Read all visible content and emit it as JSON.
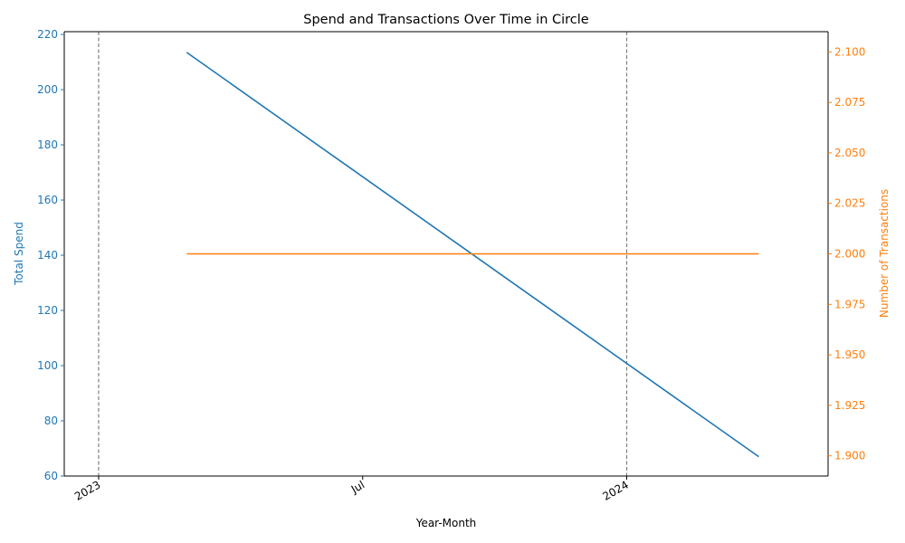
{
  "chart_data": {
    "type": "line",
    "title": "Spend and Transactions Over Time in Circle",
    "xlabel": "Year-Month",
    "x": [
      "2023-03",
      "2024-04"
    ],
    "x_range": [
      "2023-01",
      "2024-05"
    ],
    "x_ticks": [
      {
        "value": "2023-01",
        "label": "2023"
      },
      {
        "value": "2023-07",
        "label": "Jul"
      },
      {
        "value": "2024-01",
        "label": "2024"
      }
    ],
    "vlines": [
      "2023-01",
      "2024-01"
    ],
    "left_axis": {
      "label": "Total Spend",
      "color": "#1f77b4",
      "range": [
        60,
        221
      ],
      "ticks": [
        60,
        80,
        100,
        120,
        140,
        160,
        180,
        200,
        220
      ],
      "tick_labels": [
        "60",
        "80",
        "100",
        "120",
        "140",
        "160",
        "180",
        "200",
        "220"
      ]
    },
    "right_axis": {
      "label": "Number of Transactions",
      "color": "#ff7f0e",
      "range": [
        1.89,
        2.11
      ],
      "ticks": [
        1.9,
        1.925,
        1.95,
        1.975,
        2.0,
        2.025,
        2.05,
        2.075,
        2.1
      ],
      "tick_labels": [
        "1.900",
        "1.925",
        "1.950",
        "1.975",
        "2.000",
        "2.025",
        "2.050",
        "2.075",
        "2.100"
      ]
    },
    "series": [
      {
        "axis": "left",
        "color": "#1f77b4",
        "values": [
          213.5,
          67
        ]
      },
      {
        "axis": "right",
        "color": "#ff7f0e",
        "values": [
          2.0,
          2.0
        ]
      }
    ],
    "grid": false,
    "legend": "none"
  }
}
